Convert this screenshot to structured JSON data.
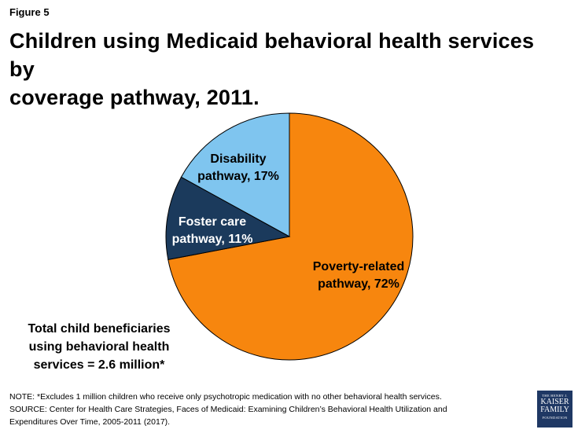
{
  "header": {
    "figure_label": "Figure 5",
    "title_line1": "Children using Medicaid behavioral health services by",
    "title_line2": "coverage pathway, 2011."
  },
  "chart_data": {
    "type": "pie",
    "title": "Children using Medicaid behavioral health services by coverage pathway, 2011.",
    "slices": [
      {
        "label_line1": "Poverty-related",
        "label_line2": "pathway, 72%",
        "value": 72,
        "color": "#f7860e",
        "label_color": "#000000"
      },
      {
        "label_line1": "Foster care",
        "label_line2": "pathway, 11%",
        "value": 11,
        "color": "#1b3a5c",
        "label_color": "#ffffff"
      },
      {
        "label_line1": "Disability",
        "label_line2": "pathway, 17%",
        "value": 17,
        "color": "#7fc5ef",
        "label_color": "#000000"
      }
    ],
    "unit": "%"
  },
  "annotation": {
    "line1": "Total child beneficiaries",
    "line2": "using behavioral health",
    "line3": "services = 2.6 million*"
  },
  "notes": {
    "note": "NOTE:  *Excludes 1 million children who receive only psychotropic medication with no other behavioral health services.",
    "source_line1": "SOURCE:  Center for Health Care Strategies, Faces of Medicaid:  Examining Children’s Behavioral Health Utilization and",
    "source_line2": "Expenditures Over Time, 2005-2011 (2017)."
  },
  "logo": {
    "line1": "THE HENRY J.",
    "line2": "KAISER",
    "line3": "FAMILY",
    "line4": "FOUNDATION",
    "color": "#1f3864"
  }
}
